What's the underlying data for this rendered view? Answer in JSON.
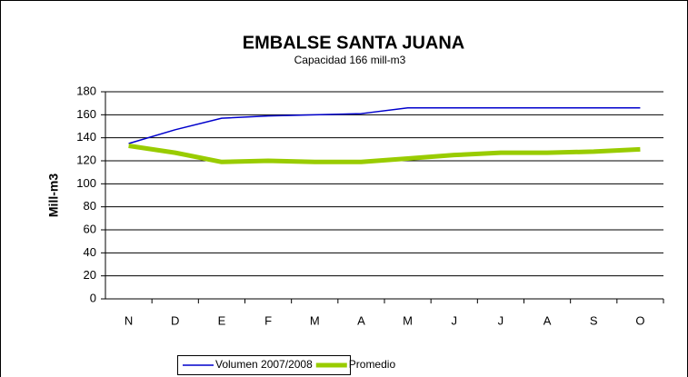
{
  "chart_data": {
    "type": "line",
    "title": "EMBALSE SANTA JUANA",
    "subtitle": "Capacidad 166 mill-m3",
    "y_label": "Mill-m3",
    "categories": [
      "N",
      "D",
      "E",
      "F",
      "M",
      "A",
      "M",
      "J",
      "J",
      "A",
      "S",
      "O"
    ],
    "series": [
      {
        "name": "Volumen  2007/2008",
        "color": "#0000cc",
        "width": 1.5,
        "values": [
          135,
          147,
          157,
          159,
          160,
          161,
          166,
          166,
          166,
          166,
          166,
          166
        ]
      },
      {
        "name": "Promedio",
        "color": "#99cc00",
        "width": 5,
        "values": [
          133,
          127,
          119,
          120,
          119,
          119,
          122,
          125,
          127,
          127,
          128,
          130
        ]
      }
    ],
    "ylim": [
      0,
      180
    ],
    "yticks": [
      0,
      20,
      40,
      60,
      80,
      100,
      120,
      140,
      160,
      180
    ],
    "grid": true,
    "legend": "bottom"
  }
}
